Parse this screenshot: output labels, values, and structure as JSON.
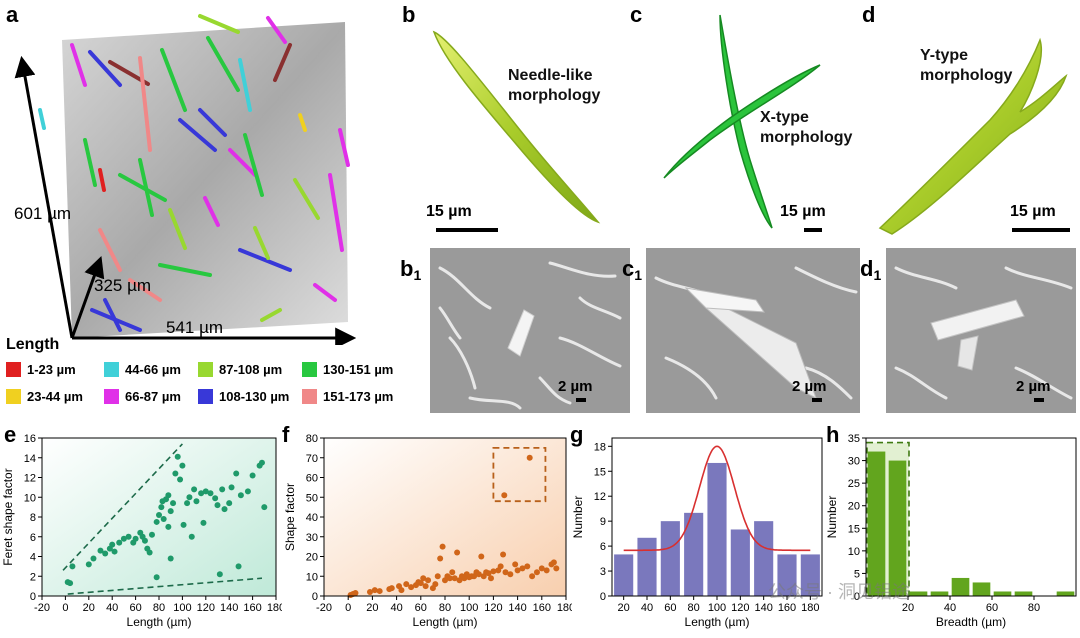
{
  "panels": {
    "a": {
      "label": "a",
      "axis_z_label": "601 µm",
      "axis_y_label": "325 µm",
      "axis_x_label": "541 µm",
      "legend_title": "Length",
      "legend": [
        {
          "label": "1-23 µm",
          "color": "#e02020"
        },
        {
          "label": "44-66 µm",
          "color": "#40d0d8"
        },
        {
          "label": "87-108 µm",
          "color": "#98d830"
        },
        {
          "label": "130-151 µm",
          "color": "#28c840"
        },
        {
          "label": "23-44 µm",
          "color": "#f0d020"
        },
        {
          "label": "66-87 µm",
          "color": "#e030e8"
        },
        {
          "label": "108-130 µm",
          "color": "#3838d8"
        },
        {
          "label": "151-173 µm",
          "color": "#f08888"
        }
      ]
    },
    "b": {
      "label": "b",
      "text": "Needle-like morphology",
      "scale": "15 µm",
      "sub_label": "b",
      "sub_index": "1",
      "sem_scale": "2 µm"
    },
    "c": {
      "label": "c",
      "text": "X-type morphology",
      "scale": "15 µm",
      "sub_label": "c",
      "sub_index": "1",
      "sem_scale": "2 µm"
    },
    "d": {
      "label": "d",
      "text": "Y-type morphology",
      "scale": "15 µm",
      "sub_label": "d",
      "sub_index": "1",
      "sem_scale": "2 µm"
    },
    "e": {
      "label": "e"
    },
    "f": {
      "label": "f"
    },
    "g": {
      "label": "g"
    },
    "h": {
      "label": "h"
    }
  },
  "watermark": "公众号 · 洞见铝途",
  "chart_data": [
    {
      "panel": "e",
      "type": "scatter",
      "xlabel": "Length (µm)",
      "ylabel": "Feret shape factor",
      "xlim": [
        -20,
        180
      ],
      "ylim": [
        0,
        16
      ],
      "xticks": [
        -20,
        0,
        20,
        40,
        60,
        80,
        100,
        120,
        140,
        160,
        180
      ],
      "yticks": [
        0,
        2,
        4,
        6,
        8,
        10,
        12,
        14,
        16
      ],
      "marker_color": "#1f9a6a",
      "points": [
        [
          2,
          1.4
        ],
        [
          4,
          1.3
        ],
        [
          6,
          3.0
        ],
        [
          20,
          3.2
        ],
        [
          24,
          3.8
        ],
        [
          30,
          4.6
        ],
        [
          34,
          4.3
        ],
        [
          38,
          4.8
        ],
        [
          40,
          5.2
        ],
        [
          42,
          4.5
        ],
        [
          46,
          5.4
        ],
        [
          50,
          5.8
        ],
        [
          54,
          6.0
        ],
        [
          58,
          5.4
        ],
        [
          60,
          5.8
        ],
        [
          64,
          6.4
        ],
        [
          66,
          6.0
        ],
        [
          68,
          5.6
        ],
        [
          70,
          4.8
        ],
        [
          72,
          4.4
        ],
        [
          74,
          6.2
        ],
        [
          78,
          7.5
        ],
        [
          80,
          8.2
        ],
        [
          82,
          9.0
        ],
        [
          83,
          9.6
        ],
        [
          84,
          7.8
        ],
        [
          86,
          9.8
        ],
        [
          88,
          10.2
        ],
        [
          90,
          8.6
        ],
        [
          92,
          9.4
        ],
        [
          94,
          12.4
        ],
        [
          96,
          14.1
        ],
        [
          98,
          11.8
        ],
        [
          100,
          13.2
        ],
        [
          101,
          7.2
        ],
        [
          104,
          9.4
        ],
        [
          106,
          10.0
        ],
        [
          108,
          6.0
        ],
        [
          110,
          10.8
        ],
        [
          112,
          9.6
        ],
        [
          116,
          10.4
        ],
        [
          118,
          7.4
        ],
        [
          120,
          10.6
        ],
        [
          124,
          10.4
        ],
        [
          128,
          9.9
        ],
        [
          130,
          9.2
        ],
        [
          134,
          10.8
        ],
        [
          136,
          8.8
        ],
        [
          140,
          9.4
        ],
        [
          142,
          11.0
        ],
        [
          146,
          12.4
        ],
        [
          150,
          10.2
        ],
        [
          156,
          10.6
        ],
        [
          160,
          12.2
        ],
        [
          166,
          13.2
        ],
        [
          168,
          13.5
        ],
        [
          170,
          9.0
        ],
        [
          88,
          7.0
        ],
        [
          90,
          3.8
        ],
        [
          78,
          1.9
        ],
        [
          132,
          2.2
        ],
        [
          148,
          3.0
        ]
      ],
      "lines": [
        {
          "style": "dashed",
          "points": [
            [
              -2,
              2.6
            ],
            [
              100,
              15.4
            ]
          ]
        },
        {
          "style": "dashed",
          "points": [
            [
              2,
              0.2
            ],
            [
              168,
              1.8
            ]
          ]
        }
      ]
    },
    {
      "panel": "f",
      "type": "scatter",
      "xlabel": "Length (µm)",
      "ylabel": "Shape factor",
      "xlim": [
        -20,
        180
      ],
      "ylim": [
        0,
        80
      ],
      "xticks": [
        -20,
        0,
        20,
        40,
        60,
        80,
        100,
        120,
        140,
        160,
        180
      ],
      "yticks": [
        0,
        10,
        20,
        30,
        40,
        50,
        60,
        70,
        80
      ],
      "marker_color": "#d0661a",
      "points": [
        [
          2,
          0.5
        ],
        [
          4,
          1.0
        ],
        [
          6,
          1.5
        ],
        [
          18,
          2.0
        ],
        [
          22,
          3.0
        ],
        [
          26,
          2.5
        ],
        [
          34,
          3.5
        ],
        [
          36,
          4.0
        ],
        [
          42,
          5.0
        ],
        [
          44,
          3.0
        ],
        [
          48,
          6.0
        ],
        [
          52,
          4.5
        ],
        [
          56,
          5.5
        ],
        [
          58,
          7.0
        ],
        [
          60,
          6.5
        ],
        [
          62,
          9.0
        ],
        [
          64,
          5.0
        ],
        [
          66,
          8.0
        ],
        [
          70,
          4.0
        ],
        [
          72,
          6.0
        ],
        [
          74,
          10.0
        ],
        [
          76,
          19.0
        ],
        [
          78,
          25.0
        ],
        [
          80,
          8.0
        ],
        [
          82,
          10.0
        ],
        [
          84,
          9.0
        ],
        [
          86,
          12.0
        ],
        [
          88,
          9.0
        ],
        [
          90,
          22.0
        ],
        [
          92,
          8.0
        ],
        [
          94,
          10.0
        ],
        [
          96,
          9.0
        ],
        [
          98,
          11.0
        ],
        [
          100,
          9.5
        ],
        [
          102,
          10.0
        ],
        [
          104,
          10.0
        ],
        [
          106,
          12.0
        ],
        [
          108,
          11.0
        ],
        [
          110,
          20.0
        ],
        [
          112,
          10.0
        ],
        [
          114,
          12.0
        ],
        [
          116,
          11.5
        ],
        [
          118,
          9.0
        ],
        [
          120,
          12.5
        ],
        [
          124,
          13.0
        ],
        [
          126,
          15.0
        ],
        [
          128,
          21.0
        ],
        [
          130,
          12.0
        ],
        [
          134,
          11.0
        ],
        [
          138,
          16.0
        ],
        [
          140,
          13.0
        ],
        [
          144,
          14.0
        ],
        [
          148,
          15.0
        ],
        [
          152,
          10.0
        ],
        [
          156,
          12.0
        ],
        [
          160,
          14.0
        ],
        [
          164,
          13.0
        ],
        [
          168,
          16.0
        ],
        [
          170,
          17.0
        ],
        [
          172,
          14.0
        ],
        [
          129,
          51.0
        ],
        [
          150,
          70.0
        ]
      ],
      "box": {
        "x": [
          120,
          163
        ],
        "y": [
          48,
          75
        ]
      }
    },
    {
      "panel": "g",
      "type": "bar",
      "xlabel": "Length (µm)",
      "ylabel": "Number",
      "xlim": [
        10,
        190
      ],
      "ylim": [
        0,
        19
      ],
      "xticks": [
        20,
        40,
        60,
        80,
        100,
        120,
        140,
        160,
        180
      ],
      "yticks": [
        0,
        3,
        6,
        9,
        12,
        15,
        18
      ],
      "bar_color": "#7a78bd",
      "curve_color": "#d83030",
      "centers": [
        20,
        40,
        60,
        80,
        100,
        120,
        140,
        160,
        180
      ],
      "values": [
        5,
        7,
        9,
        10,
        16,
        8,
        9,
        5,
        5
      ],
      "fit": {
        "type": "gaussian",
        "baseline": 5.5,
        "amplitude": 12.5,
        "center": 100,
        "sigma": 15
      }
    },
    {
      "panel": "h",
      "type": "bar",
      "xlabel": "Breadth (µm)",
      "ylabel": "Number",
      "xlim": [
        0,
        100
      ],
      "ylim": [
        0,
        35
      ],
      "xticks": [
        20,
        40,
        60,
        80
      ],
      "yticks": [
        0,
        5,
        10,
        15,
        20,
        25,
        30,
        35
      ],
      "bar_color": "#62a51e",
      "centers": [
        5,
        15,
        25,
        35,
        45,
        55,
        65,
        75,
        85,
        95
      ],
      "values": [
        32,
        30,
        1,
        1,
        4,
        3,
        1,
        1,
        0,
        1
      ],
      "box": {
        "x": [
          0,
          20
        ],
        "y": [
          0,
          34
        ]
      }
    }
  ]
}
